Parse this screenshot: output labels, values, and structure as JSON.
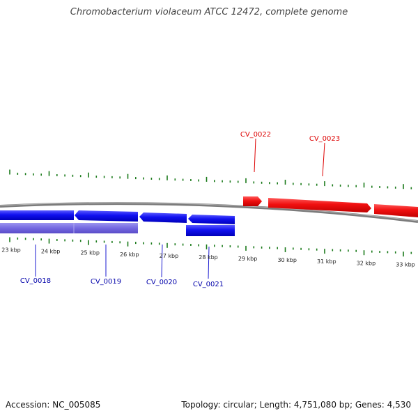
{
  "title": "Chromobacterium violaceum ATCC 12472, complete genome",
  "footer": {
    "accession": "Accession: NC_005085",
    "stats": "Topology: circular; Length: 4,751,080 bp; Genes: 4,530"
  },
  "colors": {
    "forward_gene": "#ff0000",
    "reverse_gene": "#0000ee",
    "reverse_rna": "#7a6fe0",
    "tick": "#1a7a1a",
    "backbone": "#8a8a8a",
    "forward_label": "#dd0000",
    "reverse_label": "#0000aa"
  },
  "scale_labels": [
    "23 kbp",
    "24 kbp",
    "25 kbp",
    "26 kbp",
    "27 kbp",
    "28 kbp",
    "29 kbp",
    "30 kbp",
    "31 kbp",
    "32 kbp",
    "33 kbp"
  ],
  "gene_labels": {
    "cv0018": "CV_0018",
    "cv0019": "CV_0019",
    "cv0020": "CV_0020",
    "cv0021": "CV_0021",
    "cv0022": "CV_0022",
    "cv0023": "CV_0023"
  }
}
